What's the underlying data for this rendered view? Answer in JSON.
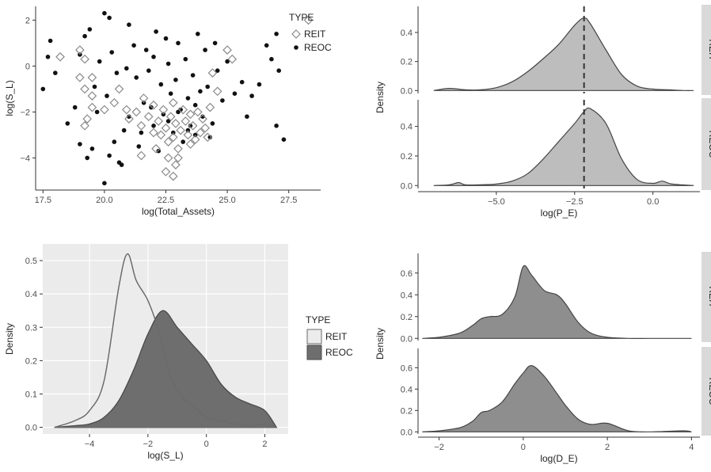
{
  "chart_data": [
    {
      "type": "scatter",
      "xlabel": "log(Total_Assets)",
      "ylabel": "log(S_L)",
      "xlim": [
        17.2,
        28.8
      ],
      "ylim": [
        -5.4,
        2.6
      ],
      "xticks": [
        "17.5",
        "20.0",
        "22.5",
        "25.0",
        "27.5"
      ],
      "yticks": [
        "-4",
        "-2",
        "0",
        "2"
      ],
      "legend": {
        "title": "TYPE",
        "position": "top-right",
        "entries": [
          "REIT",
          "REOC"
        ]
      },
      "grid": false,
      "series": [
        {
          "name": "REIT",
          "marker": "open-diamond",
          "color": "#8a8a8a",
          "points": [
            [
              18.2,
              0.4
            ],
            [
              19.0,
              0.7
            ],
            [
              19.2,
              0.3
            ],
            [
              19.0,
              -0.5
            ],
            [
              19.5,
              -0.5
            ],
            [
              19.2,
              -1.0
            ],
            [
              19.5,
              -1.3
            ],
            [
              19.5,
              -1.8
            ],
            [
              19.3,
              -2.3
            ],
            [
              19.2,
              -2.6
            ],
            [
              20.0,
              -1.9
            ],
            [
              20.4,
              -1.6
            ],
            [
              20.6,
              -1.0
            ],
            [
              20.9,
              -1.9
            ],
            [
              21.0,
              -2.3
            ],
            [
              21.3,
              -2.0
            ],
            [
              21.5,
              -2.6
            ],
            [
              21.6,
              -1.4
            ],
            [
              21.8,
              -2.2
            ],
            [
              22.0,
              -2.9
            ],
            [
              22.0,
              -1.7
            ],
            [
              22.2,
              -2.4
            ],
            [
              22.3,
              -3.0
            ],
            [
              22.4,
              -1.9
            ],
            [
              22.5,
              -2.7
            ],
            [
              22.6,
              -3.3
            ],
            [
              22.7,
              -2.2
            ],
            [
              22.8,
              -3.1
            ],
            [
              22.8,
              -1.6
            ],
            [
              22.9,
              -2.5
            ],
            [
              23.0,
              -3.6
            ],
            [
              23.1,
              -2.8
            ],
            [
              23.2,
              -1.9
            ],
            [
              23.3,
              -2.4
            ],
            [
              23.4,
              -3.0
            ],
            [
              23.5,
              -2.1
            ],
            [
              23.6,
              -2.6
            ],
            [
              23.7,
              -3.2
            ],
            [
              23.8,
              -2.0
            ],
            [
              23.9,
              -2.9
            ],
            [
              24.0,
              -2.3
            ],
            [
              24.1,
              -2.7
            ],
            [
              24.3,
              -1.8
            ],
            [
              24.2,
              -3.1
            ],
            [
              22.6,
              -4.0
            ],
            [
              22.9,
              -4.3
            ],
            [
              22.5,
              -4.6
            ],
            [
              22.8,
              -4.8
            ],
            [
              23.0,
              -4.0
            ],
            [
              21.5,
              -3.9
            ],
            [
              22.1,
              -3.6
            ],
            [
              23.5,
              -3.4
            ],
            [
              24.6,
              -1.1
            ],
            [
              24.4,
              -0.3
            ],
            [
              25.0,
              0.7
            ],
            [
              25.2,
              0.3
            ],
            [
              28.3,
              2.0
            ]
          ]
        },
        {
          "name": "REOC",
          "marker": "filled-circle",
          "color": "#111111",
          "points": [
            [
              17.5,
              -1.0
            ],
            [
              17.7,
              0.4
            ],
            [
              17.8,
              1.1
            ],
            [
              18.0,
              -0.3
            ],
            [
              18.5,
              -2.5
            ],
            [
              18.8,
              -1.8
            ],
            [
              19.0,
              0.5
            ],
            [
              19.2,
              1.3
            ],
            [
              19.4,
              1.6
            ],
            [
              19.6,
              -0.9
            ],
            [
              19.0,
              -3.4
            ],
            [
              19.3,
              -4.0
            ],
            [
              19.5,
              -3.6
            ],
            [
              19.8,
              0.2
            ],
            [
              20.0,
              2.3
            ],
            [
              20.2,
              2.1
            ],
            [
              20.3,
              0.6
            ],
            [
              20.5,
              -0.3
            ],
            [
              20.6,
              -4.2
            ],
            [
              20.7,
              -4.3
            ],
            [
              20.0,
              -5.1
            ],
            [
              20.2,
              -3.9
            ],
            [
              20.4,
              -3.3
            ],
            [
              20.8,
              -2.8
            ],
            [
              21.0,
              1.8
            ],
            [
              21.2,
              0.9
            ],
            [
              21.3,
              -0.5
            ],
            [
              21.4,
              -3.5
            ],
            [
              21.6,
              -1.6
            ],
            [
              21.8,
              -0.2
            ],
            [
              22.0,
              0.4
            ],
            [
              22.1,
              1.5
            ],
            [
              22.3,
              -0.8
            ],
            [
              22.4,
              -2.1
            ],
            [
              22.5,
              1.2
            ],
            [
              22.6,
              0.1
            ],
            [
              22.7,
              -1.2
            ],
            [
              22.8,
              -2.9
            ],
            [
              22.9,
              -0.6
            ],
            [
              23.0,
              1.0
            ],
            [
              23.1,
              -1.9
            ],
            [
              23.2,
              -3.3
            ],
            [
              23.3,
              0.3
            ],
            [
              23.4,
              -1.4
            ],
            [
              23.5,
              -2.6
            ],
            [
              23.6,
              -0.4
            ],
            [
              23.7,
              -3.0
            ],
            [
              23.8,
              1.4
            ],
            [
              23.9,
              -1.1
            ],
            [
              24.0,
              -2.2
            ],
            [
              24.1,
              0.7
            ],
            [
              24.2,
              -0.9
            ],
            [
              24.4,
              -2.5
            ],
            [
              24.5,
              1.0
            ],
            [
              24.6,
              -0.2
            ],
            [
              24.8,
              -1.5
            ],
            [
              25.0,
              0.2
            ],
            [
              25.3,
              -1.2
            ],
            [
              25.6,
              -0.7
            ],
            [
              26.0,
              -1.3
            ],
            [
              26.3,
              -0.8
            ],
            [
              26.6,
              0.9
            ],
            [
              26.8,
              0.3
            ],
            [
              27.0,
              1.4
            ],
            [
              27.1,
              -0.2
            ],
            [
              27.3,
              -3.2
            ],
            [
              21.0,
              -2.2
            ],
            [
              21.5,
              -2.9
            ],
            [
              21.9,
              -1.8
            ],
            [
              22.2,
              -3.7
            ],
            [
              22.6,
              -2.4
            ],
            [
              23.0,
              -2.0
            ],
            [
              23.4,
              -2.8
            ],
            [
              21.7,
              0.7
            ],
            [
              20.9,
              -0.1
            ],
            [
              20.1,
              -1.3
            ],
            [
              19.7,
              -2.0
            ],
            [
              22.0,
              -2.6
            ],
            [
              23.7,
              -1.7
            ],
            [
              24.3,
              -3.1
            ],
            [
              25.8,
              -2.2
            ],
            [
              27.0,
              -2.6
            ]
          ]
        }
      ]
    },
    {
      "type": "area",
      "xlabel": "log(P_E)",
      "ylabel": "Density",
      "xlim": [
        -7.5,
        1.5
      ],
      "xticks": [
        "-5.0",
        "-2.5",
        "0.0"
      ],
      "grid": false,
      "reference_line": {
        "x": -2.2,
        "style": "dashed"
      },
      "panels": [
        {
          "label": "REIT",
          "ylim": [
            -0.02,
            0.58
          ],
          "yticks": [
            "0.0",
            "0.2",
            "0.4"
          ],
          "fill": "#bdbdbd",
          "x": [
            -7.0,
            -6.5,
            -6.0,
            -5.5,
            -5.0,
            -4.5,
            -4.0,
            -3.5,
            -3.0,
            -2.5,
            -2.2,
            -2.0,
            -1.5,
            -1.0,
            -0.5,
            0.0,
            0.5,
            1.0,
            1.3
          ],
          "y": [
            0.0,
            0.015,
            0.005,
            0.005,
            0.02,
            0.06,
            0.13,
            0.22,
            0.32,
            0.45,
            0.5,
            0.46,
            0.28,
            0.11,
            0.03,
            0.01,
            0.005,
            0.0,
            0.0
          ]
        },
        {
          "label": "REOC",
          "ylim": [
            -0.02,
            0.58
          ],
          "yticks": [
            "0.0",
            "0.2",
            "0.4"
          ],
          "fill": "#bdbdbd",
          "x": [
            -7.0,
            -6.5,
            -6.2,
            -6.0,
            -5.5,
            -5.0,
            -4.5,
            -4.0,
            -3.5,
            -3.0,
            -2.5,
            -2.2,
            -2.0,
            -1.5,
            -1.0,
            -0.5,
            0.0,
            0.3,
            0.6,
            1.3
          ],
          "y": [
            0.0,
            0.005,
            0.02,
            0.005,
            0.005,
            0.01,
            0.03,
            0.08,
            0.18,
            0.3,
            0.42,
            0.5,
            0.52,
            0.42,
            0.18,
            0.04,
            0.015,
            0.03,
            0.01,
            0.0
          ]
        }
      ]
    },
    {
      "type": "area",
      "xlabel": "log(S_L)",
      "ylabel": "Density",
      "xlim": [
        -5.6,
        2.8
      ],
      "ylim": [
        -0.02,
        0.55
      ],
      "xticks": [
        "-4",
        "-2",
        "0",
        "2"
      ],
      "yticks": [
        "0.0",
        "0.1",
        "0.2",
        "0.3",
        "0.4",
        "0.5"
      ],
      "legend": {
        "title": "TYPE",
        "position": "right",
        "entries": [
          "REIT",
          "REOC"
        ]
      },
      "grid": true,
      "series": [
        {
          "name": "REIT",
          "fill": "#ececec",
          "x": [
            -5.2,
            -4.5,
            -4.0,
            -3.5,
            -3.0,
            -2.7,
            -2.4,
            -2.0,
            -1.6,
            -1.3,
            -1.0,
            -0.7,
            -0.4,
            0.0,
            0.5,
            1.0,
            1.5,
            2.0,
            2.4
          ],
          "y": [
            0.0,
            0.02,
            0.05,
            0.14,
            0.42,
            0.52,
            0.44,
            0.38,
            0.28,
            0.17,
            0.11,
            0.08,
            0.06,
            0.03,
            0.02,
            0.01,
            0.005,
            0.01,
            0.0
          ]
        },
        {
          "name": "REOC",
          "fill": "#6e6e6e",
          "x": [
            -5.2,
            -4.5,
            -4.0,
            -3.5,
            -3.0,
            -2.5,
            -2.0,
            -1.5,
            -1.0,
            -0.5,
            0.0,
            0.5,
            1.0,
            1.5,
            2.0,
            2.4
          ],
          "y": [
            0.0,
            0.005,
            0.01,
            0.03,
            0.08,
            0.17,
            0.28,
            0.35,
            0.3,
            0.25,
            0.2,
            0.13,
            0.09,
            0.07,
            0.05,
            0.0
          ]
        }
      ]
    },
    {
      "type": "area",
      "xlabel": "log(D_E)",
      "ylabel": "Density",
      "xlim": [
        -2.5,
        4.2
      ],
      "xticks": [
        "-2",
        "0",
        "2",
        "4"
      ],
      "grid": false,
      "panels": [
        {
          "label": "REIT",
          "ylim": [
            -0.02,
            0.78
          ],
          "yticks": [
            "0.0",
            "0.2",
            "0.4",
            "0.6"
          ],
          "fill": "#8e8e8e",
          "x": [
            -2.4,
            -2.0,
            -1.5,
            -1.2,
            -1.0,
            -0.8,
            -0.5,
            -0.2,
            0.0,
            0.2,
            0.5,
            0.8,
            1.0,
            1.3,
            1.6,
            2.0,
            2.5,
            3.0,
            4.0
          ],
          "y": [
            0.0,
            0.01,
            0.05,
            0.12,
            0.18,
            0.2,
            0.22,
            0.38,
            0.66,
            0.58,
            0.44,
            0.4,
            0.32,
            0.15,
            0.05,
            0.01,
            0.0,
            0.0,
            0.0
          ]
        },
        {
          "label": "REOC",
          "ylim": [
            -0.02,
            0.78
          ],
          "yticks": [
            "0.0",
            "0.2",
            "0.4",
            "0.6"
          ],
          "fill": "#8e8e8e",
          "x": [
            -2.4,
            -2.0,
            -1.5,
            -1.2,
            -1.0,
            -0.8,
            -0.5,
            -0.2,
            0.0,
            0.2,
            0.5,
            0.8,
            1.0,
            1.3,
            1.6,
            2.0,
            2.5,
            3.0,
            3.8,
            4.0
          ],
          "y": [
            0.0,
            0.01,
            0.04,
            0.1,
            0.18,
            0.2,
            0.28,
            0.45,
            0.55,
            0.62,
            0.52,
            0.36,
            0.25,
            0.12,
            0.07,
            0.08,
            0.01,
            0.0,
            0.01,
            0.0
          ]
        }
      ]
    }
  ]
}
